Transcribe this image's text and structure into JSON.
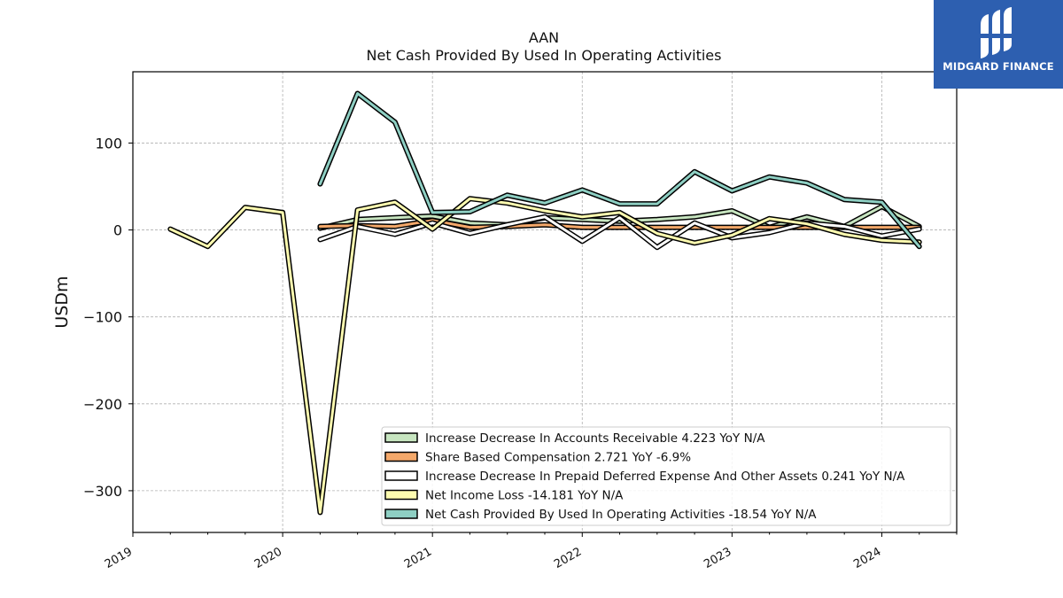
{
  "chart_data": {
    "type": "line",
    "title": "AAN",
    "subtitle": "Net Cash Provided By Used In Operating Activities",
    "xlabel": "",
    "ylabel": "USDm",
    "xlim": [
      2019.0,
      2024.5
    ],
    "ylim": [
      -348,
      182
    ],
    "x_ticks": [
      2019,
      2020,
      2021,
      2022,
      2023,
      2024
    ],
    "x_tick_labels": [
      "2019",
      "2020",
      "2021",
      "2022",
      "2023",
      "2024"
    ],
    "y_ticks": [
      100,
      0,
      -100,
      -200,
      -300
    ],
    "y_tick_labels": [
      "100",
      "0",
      "−100",
      "−200",
      "−300"
    ],
    "grid": true,
    "legend_position": "lower-right",
    "series": [
      {
        "name": "Increase Decrease In Accounts Receivable  4.223 YoY N/A",
        "color": "#c7e5c0",
        "x": [
          2020.25,
          2020.5,
          2020.75,
          2021.0,
          2021.25,
          2021.5,
          2021.75,
          2022.0,
          2022.25,
          2022.5,
          2022.75,
          2023.0,
          2023.25,
          2023.5,
          2023.75,
          2024.0,
          2024.25
        ],
        "values": [
          2,
          12,
          14,
          16,
          8,
          6,
          14,
          12,
          10,
          12,
          15,
          22,
          3,
          15,
          4,
          27,
          4
        ]
      },
      {
        "name": "Share Based Compensation  2.721 YoY -6.9%",
        "color": "#f4a86a",
        "x": [
          2020.25,
          2020.5,
          2020.75,
          2021.0,
          2021.25,
          2021.5,
          2021.75,
          2022.0,
          2022.25,
          2022.5,
          2022.75,
          2023.0,
          2023.25,
          2023.5,
          2023.75,
          2024.0,
          2024.25
        ],
        "values": [
          4,
          5,
          4,
          11,
          3,
          4,
          6,
          3,
          3,
          3,
          3,
          3,
          3,
          3,
          3,
          3,
          3
        ]
      },
      {
        "name": "Increase Decrease In Prepaid Deferred Expense And Other Assets  0.241 YoY N/A",
        "color": "#ffffff",
        "x": [
          2020.25,
          2020.5,
          2020.75,
          2021.0,
          2021.25,
          2021.5,
          2021.75,
          2022.0,
          2022.25,
          2022.5,
          2022.75,
          2023.0,
          2023.25,
          2023.5,
          2023.75,
          2024.0,
          2024.25
        ],
        "values": [
          -11,
          4,
          -5,
          8,
          -4,
          6,
          15,
          -13,
          14,
          -20,
          8,
          -9,
          -3,
          8,
          4,
          -7,
          1
        ]
      },
      {
        "name": "Net Income Loss  -14.181 YoY N/A",
        "color": "#fdfbb0",
        "x": [
          2019.25,
          2019.5,
          2019.75,
          2020.0,
          2020.25,
          2020.5,
          2020.75,
          2021.0,
          2021.25,
          2021.5,
          2021.75,
          2022.0,
          2022.25,
          2022.5,
          2022.75,
          2023.0,
          2023.25,
          2023.5,
          2023.75,
          2024.0,
          2024.25
        ],
        "values": [
          1,
          -19,
          26,
          20,
          -325,
          23,
          32,
          1,
          36,
          31,
          22,
          15,
          20,
          -4,
          -15,
          -6,
          13,
          7,
          -5,
          -12,
          -14
        ]
      },
      {
        "name": "Net Cash Provided By Used In Operating Activities  -18.54 YoY N/A",
        "color": "#8ecfc3",
        "x": [
          2020.25,
          2020.5,
          2020.75,
          2021.0,
          2021.25,
          2021.5,
          2021.75,
          2022.0,
          2022.25,
          2022.5,
          2022.75,
          2023.0,
          2023.25,
          2023.5,
          2023.75,
          2024.0,
          2024.25
        ],
        "values": [
          53,
          157,
          124,
          20,
          21,
          40,
          31,
          46,
          30,
          30,
          67,
          45,
          61,
          54,
          35,
          32,
          -19
        ]
      }
    ]
  },
  "logo": {
    "text": "MIDGARD FINANCE",
    "color": "#2d5fb0"
  }
}
